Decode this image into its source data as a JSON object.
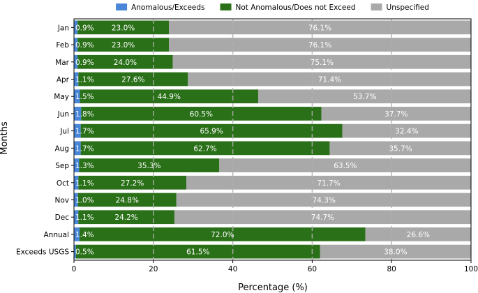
{
  "chart_data": {
    "type": "bar",
    "orientation": "horizontal",
    "stacked": true,
    "title": "",
    "xlabel": "Percentage (%)",
    "ylabel": "Months",
    "xlim": [
      0,
      100
    ],
    "xticks": [
      "0",
      "20",
      "40",
      "60",
      "80",
      "100"
    ],
    "grid": "vertical dashed",
    "legend_position": "top-center",
    "categories": [
      "Jan",
      "Feb",
      "Mar",
      "Apr",
      "May",
      "Jun",
      "Jul",
      "Aug",
      "Sep",
      "Oct",
      "Nov",
      "Dec",
      "Annual",
      "Exceeds USGS"
    ],
    "series": [
      {
        "name": "Anomalous/Exceeds",
        "color": "#4a86d8",
        "values": [
          0.9,
          0.9,
          0.9,
          1.1,
          1.5,
          1.8,
          1.7,
          1.7,
          1.3,
          1.1,
          1.0,
          1.1,
          1.4,
          0.5
        ],
        "labels": [
          "0.9%",
          "0.9%",
          "0.9%",
          "1.1%",
          "1.5%",
          "1.8%",
          "1.7%",
          "1.7%",
          "1.3%",
          "1.1%",
          "1.0%",
          "1.1%",
          "1.4%",
          "0.5%"
        ]
      },
      {
        "name": "Not Anomalous/Does not Exceed",
        "color": "#2a7018",
        "values": [
          23.0,
          23.0,
          24.0,
          27.6,
          44.9,
          60.5,
          65.9,
          62.7,
          35.3,
          27.2,
          24.8,
          24.2,
          72.0,
          61.5
        ],
        "labels": [
          "23.0%",
          "23.0%",
          "24.0%",
          "27.6%",
          "44.9%",
          "60.5%",
          "65.9%",
          "62.7%",
          "35.3%",
          "27.2%",
          "24.8%",
          "24.2%",
          "72.0%",
          "61.5%"
        ]
      },
      {
        "name": "Unspecified",
        "color": "#a9a9a9",
        "values": [
          76.1,
          76.1,
          75.1,
          71.4,
          53.7,
          37.7,
          32.4,
          35.7,
          63.5,
          71.7,
          74.3,
          74.7,
          26.6,
          38.0
        ],
        "labels": [
          "76.1%",
          "76.1%",
          "75.1%",
          "71.4%",
          "53.7%",
          "37.7%",
          "32.4%",
          "35.7%",
          "63.5%",
          "71.7%",
          "74.3%",
          "74.7%",
          "26.6%",
          "38.0%"
        ]
      }
    ]
  }
}
